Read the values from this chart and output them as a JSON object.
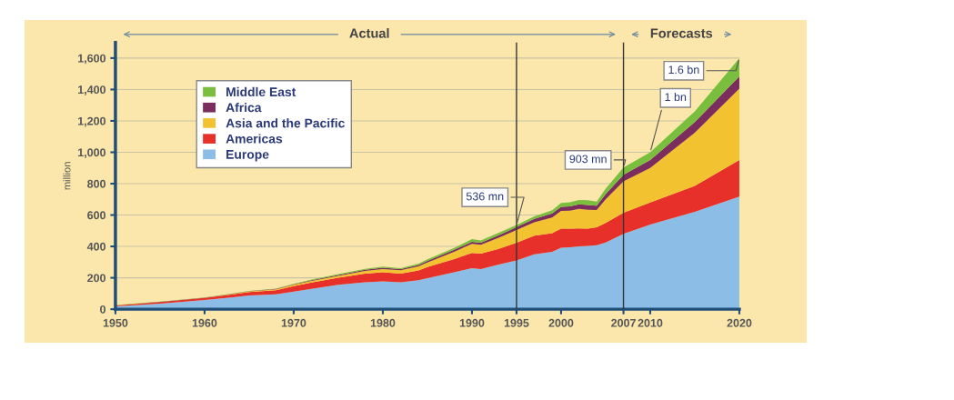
{
  "chart_data": {
    "type": "area",
    "stacked": true,
    "x": [
      1950,
      1955,
      1960,
      1965,
      1968,
      1970,
      1972,
      1975,
      1978,
      1980,
      1982,
      1984,
      1985,
      1988,
      1990,
      1991,
      1993,
      1995,
      1997,
      1999,
      2000,
      2001,
      2002,
      2003,
      2004,
      2005,
      2007,
      2010,
      2015,
      2020
    ],
    "series": [
      {
        "name": "Europe",
        "color": "#8bbde6",
        "values": [
          18,
          35,
          58,
          87,
          95,
          112,
          130,
          155,
          172,
          178,
          171,
          185,
          198,
          235,
          262,
          256,
          285,
          310,
          350,
          365,
          392,
          395,
          400,
          403,
          407,
          425,
          480,
          540,
          620,
          717
        ]
      },
      {
        "name": "Americas",
        "color": "#e8302a",
        "values": [
          6,
          10,
          13,
          22,
          26,
          35,
          40,
          45,
          55,
          58,
          55,
          62,
          70,
          85,
          97,
          98,
          100,
          113,
          118,
          120,
          122,
          118,
          115,
          111,
          115,
          125,
          135,
          140,
          165,
          233
        ]
      },
      {
        "name": "Asia and the Pacific",
        "color": "#f2c230",
        "values": [
          1,
          1,
          1,
          4,
          5,
          8,
          10,
          12,
          17,
          20,
          22,
          26,
          30,
          46,
          58,
          56,
          70,
          81,
          86,
          100,
          112,
          115,
          125,
          120,
          110,
          150,
          200,
          220,
          340,
          456
        ]
      },
      {
        "name": "Africa",
        "color": "#7b2d5e",
        "values": [
          1,
          1,
          1,
          2,
          3,
          4,
          5,
          6,
          7,
          8,
          8,
          9,
          10,
          12,
          13,
          14,
          16,
          19,
          22,
          25,
          26,
          27,
          28,
          30,
          28,
          33,
          42,
          50,
          67,
          77
        ]
      },
      {
        "name": "Middle East",
        "color": "#79bf3d",
        "values": [
          1,
          1,
          1,
          2,
          2,
          3,
          4,
          5,
          6,
          7,
          6,
          8,
          10,
          12,
          16,
          14,
          16,
          13,
          15,
          20,
          25,
          26,
          28,
          30,
          25,
          35,
          46,
          50,
          68,
          117
        ]
      }
    ],
    "xlim": [
      1950,
      2020
    ],
    "xticks": [
      1950,
      1960,
      1970,
      1980,
      1990,
      1995,
      2000,
      2007,
      2010,
      2020
    ],
    "ylim": [
      0,
      1700
    ],
    "yticks": [
      {
        "value": 0,
        "label": "0"
      },
      {
        "value": 200,
        "label": "200"
      },
      {
        "value": 400,
        "label": "400"
      },
      {
        "value": 600,
        "label": "600"
      },
      {
        "value": 800,
        "label": "800"
      },
      {
        "value": 1000,
        "label": "1,000"
      },
      {
        "value": 1200,
        "label": "1,200"
      },
      {
        "value": 1400,
        "label": "1,400"
      },
      {
        "value": 1600,
        "label": "1,600"
      }
    ],
    "ylabel": "million",
    "grid": "y",
    "legend": "top left",
    "ref_lines": [
      {
        "axis": "x",
        "value": 1995,
        "color": "#333333"
      },
      {
        "axis": "x",
        "value": 2007,
        "color": "#333333"
      }
    ],
    "annotations": [
      "Actual",
      "Forecasts",
      {
        "text": "536 mn",
        "x": 1995,
        "y": 536
      },
      {
        "text": "903 mn",
        "x": 2007,
        "y": 903
      },
      {
        "text": "1 bn",
        "x": 2010,
        "y": 1000
      },
      {
        "text": "1.6 bn",
        "x": 2020,
        "y": 1600
      }
    ]
  }
}
